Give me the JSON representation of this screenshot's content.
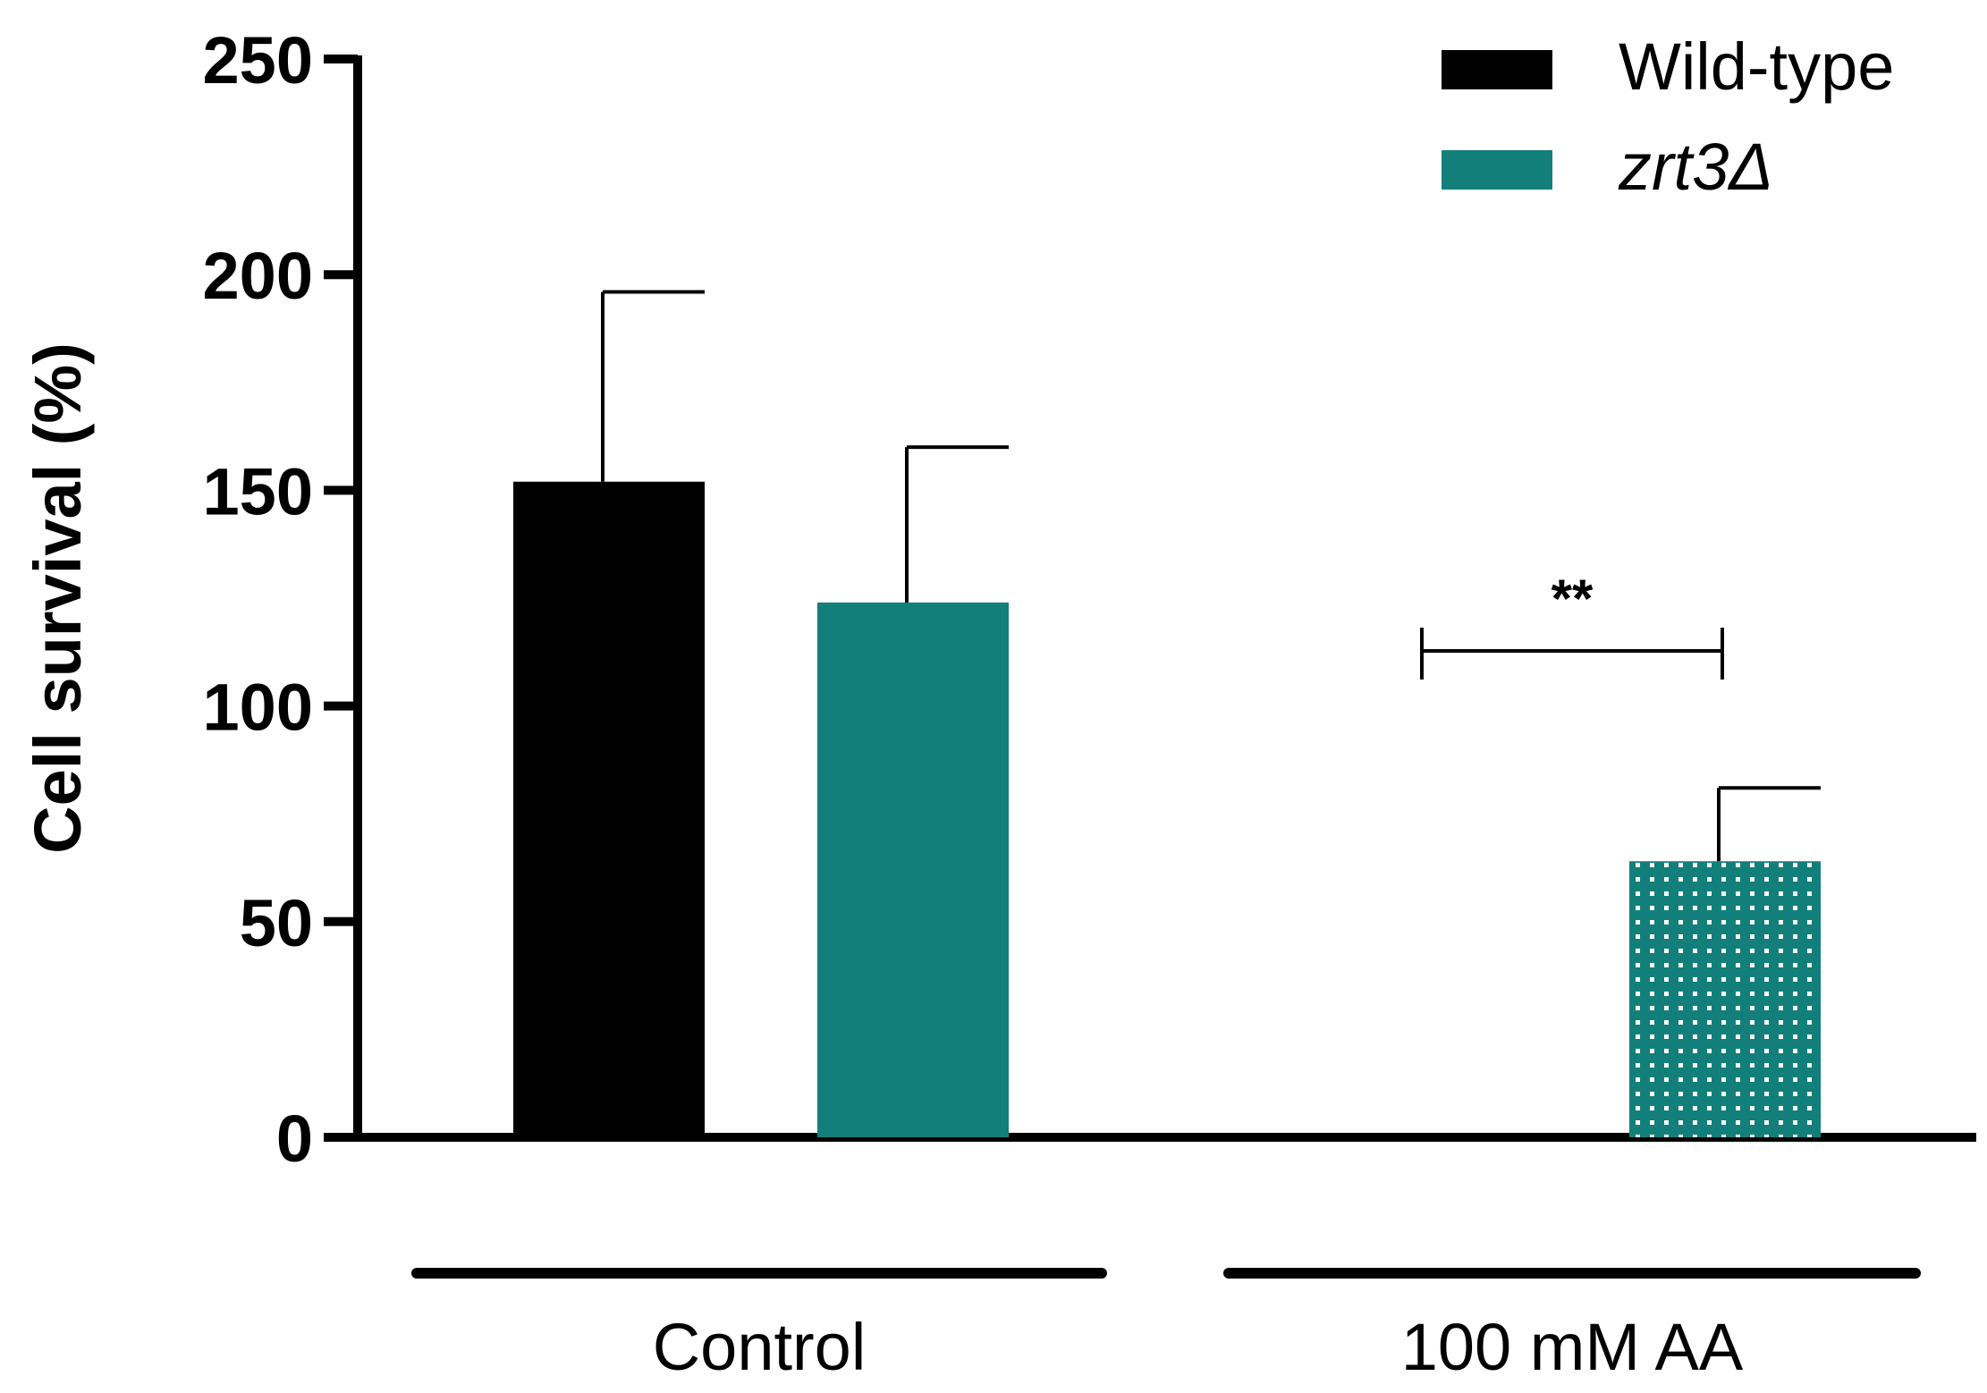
{
  "chart_data": {
    "type": "bar",
    "ylabel": "Cell survival (%)",
    "ylim": [
      0,
      250
    ],
    "yticks": [
      0,
      50,
      100,
      150,
      200,
      250
    ],
    "groups": [
      "Control",
      "100 mM AA"
    ],
    "series": [
      {
        "name": "Wild-type",
        "color": "#000000",
        "italic": false,
        "values": [
          152,
          0
        ],
        "errors": [
          44,
          0
        ],
        "patterns": [
          "solid",
          "solid"
        ]
      },
      {
        "name": "zrt3Δ",
        "color": "#137f7a",
        "italic": true,
        "values": [
          124,
          64
        ],
        "errors": [
          36,
          17
        ],
        "patterns": [
          "solid",
          "dotted"
        ]
      }
    ],
    "annotations": [
      {
        "text": "**",
        "group": "100 mM AA",
        "comparison": "Wild-type vs zrt3Δ"
      }
    ],
    "legend_position": "top-right"
  }
}
